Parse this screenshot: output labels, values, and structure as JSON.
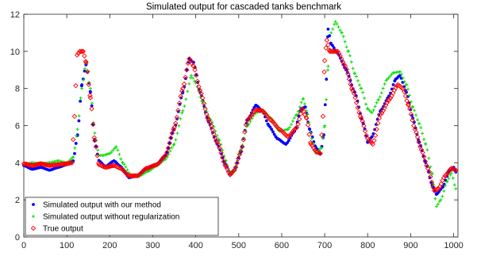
{
  "chart_data": {
    "type": "scatter",
    "title": "Simulated output for cascaded tanks benchmark",
    "xlabel": "",
    "ylabel": "",
    "xlim": [
      0,
      1010
    ],
    "ylim": [
      0,
      12
    ],
    "xticks": [
      0,
      100,
      200,
      300,
      400,
      500,
      600,
      700,
      800,
      900,
      1000
    ],
    "yticks": [
      0,
      2,
      4,
      6,
      8,
      10,
      12
    ],
    "grid": false,
    "legend_position": "bottom-left",
    "series": [
      {
        "name": "Simulated output with our method",
        "color": "#0000ff",
        "marker": "dot",
        "points": [
          [
            0,
            3.85
          ],
          [
            20,
            3.65
          ],
          [
            40,
            3.75
          ],
          [
            60,
            3.6
          ],
          [
            80,
            3.75
          ],
          [
            100,
            3.9
          ],
          [
            115,
            4.1
          ],
          [
            125,
            5.5
          ],
          [
            135,
            8.2
          ],
          [
            145,
            9.3
          ],
          [
            155,
            7.8
          ],
          [
            165,
            5.2
          ],
          [
            175,
            4.1
          ],
          [
            190,
            3.8
          ],
          [
            210,
            4.1
          ],
          [
            225,
            3.8
          ],
          [
            245,
            3.2
          ],
          [
            265,
            3.3
          ],
          [
            285,
            3.65
          ],
          [
            310,
            3.9
          ],
          [
            330,
            4.4
          ],
          [
            350,
            5.8
          ],
          [
            370,
            7.8
          ],
          [
            385,
            9.6
          ],
          [
            395,
            9.4
          ],
          [
            410,
            7.8
          ],
          [
            430,
            6.2
          ],
          [
            450,
            5.0
          ],
          [
            470,
            3.9
          ],
          [
            480,
            3.4
          ],
          [
            490,
            3.6
          ],
          [
            505,
            4.6
          ],
          [
            520,
            6.3
          ],
          [
            540,
            7.1
          ],
          [
            555,
            6.8
          ],
          [
            570,
            6.0
          ],
          [
            590,
            5.3
          ],
          [
            610,
            5.0
          ],
          [
            630,
            5.7
          ],
          [
            645,
            6.9
          ],
          [
            655,
            7.0
          ],
          [
            665,
            5.8
          ],
          [
            680,
            4.8
          ],
          [
            690,
            4.5
          ],
          [
            698,
            5.5
          ],
          [
            704,
            8.5
          ],
          [
            708,
            11.2
          ],
          [
            715,
            10.4
          ],
          [
            730,
            9.9
          ],
          [
            750,
            9.0
          ],
          [
            770,
            7.8
          ],
          [
            790,
            6.1
          ],
          [
            800,
            5.1
          ],
          [
            810,
            5.4
          ],
          [
            830,
            6.8
          ],
          [
            850,
            7.6
          ],
          [
            865,
            8.5
          ],
          [
            875,
            8.7
          ],
          [
            890,
            7.8
          ],
          [
            905,
            6.4
          ],
          [
            920,
            5.1
          ],
          [
            935,
            4.0
          ],
          [
            950,
            2.8
          ],
          [
            960,
            2.3
          ],
          [
            975,
            2.7
          ],
          [
            990,
            3.55
          ],
          [
            1000,
            3.75
          ],
          [
            1005,
            3.5
          ]
        ]
      },
      {
        "name": "Simulated output without regularization",
        "color": "#00dd00",
        "marker": "plus",
        "points": [
          [
            0,
            3.9
          ],
          [
            20,
            4.0
          ],
          [
            40,
            3.95
          ],
          [
            60,
            4.0
          ],
          [
            80,
            4.1
          ],
          [
            100,
            4.0
          ],
          [
            115,
            4.3
          ],
          [
            125,
            5.8
          ],
          [
            135,
            8.0
          ],
          [
            145,
            9.4
          ],
          [
            155,
            8.0
          ],
          [
            165,
            5.6
          ],
          [
            175,
            4.4
          ],
          [
            185,
            4.4
          ],
          [
            200,
            4.5
          ],
          [
            215,
            4.85
          ],
          [
            230,
            4.0
          ],
          [
            250,
            3.3
          ],
          [
            270,
            3.3
          ],
          [
            290,
            3.55
          ],
          [
            310,
            3.85
          ],
          [
            330,
            4.2
          ],
          [
            350,
            5.0
          ],
          [
            370,
            6.8
          ],
          [
            390,
            8.7
          ],
          [
            400,
            8.3
          ],
          [
            415,
            7.3
          ],
          [
            435,
            6.3
          ],
          [
            455,
            5.2
          ],
          [
            470,
            4.1
          ],
          [
            480,
            3.4
          ],
          [
            490,
            3.6
          ],
          [
            505,
            4.7
          ],
          [
            520,
            6.0
          ],
          [
            540,
            6.7
          ],
          [
            555,
            6.8
          ],
          [
            575,
            6.4
          ],
          [
            595,
            5.7
          ],
          [
            615,
            5.8
          ],
          [
            635,
            6.6
          ],
          [
            650,
            7.45
          ],
          [
            660,
            6.6
          ],
          [
            670,
            5.3
          ],
          [
            680,
            4.5
          ],
          [
            692,
            4.8
          ],
          [
            700,
            6.0
          ],
          [
            708,
            9.2
          ],
          [
            715,
            11.0
          ],
          [
            725,
            11.6
          ],
          [
            740,
            11.0
          ],
          [
            755,
            10.0
          ],
          [
            770,
            8.8
          ],
          [
            785,
            8.0
          ],
          [
            800,
            6.9
          ],
          [
            810,
            6.7
          ],
          [
            825,
            7.4
          ],
          [
            845,
            8.5
          ],
          [
            860,
            8.85
          ],
          [
            875,
            8.9
          ],
          [
            890,
            8.2
          ],
          [
            905,
            7.0
          ],
          [
            920,
            6.1
          ],
          [
            935,
            5.0
          ],
          [
            950,
            3.4
          ],
          [
            960,
            1.65
          ],
          [
            970,
            2.0
          ],
          [
            985,
            3.0
          ],
          [
            995,
            3.45
          ],
          [
            1005,
            2.6
          ]
        ]
      },
      {
        "name": "True output",
        "color": "#ff0000",
        "marker": "diamond",
        "points": [
          [
            0,
            3.95
          ],
          [
            20,
            3.85
          ],
          [
            40,
            3.95
          ],
          [
            60,
            3.85
          ],
          [
            80,
            3.9
          ],
          [
            100,
            3.95
          ],
          [
            112,
            4.0
          ],
          [
            118,
            6.5
          ],
          [
            124,
            9.8
          ],
          [
            130,
            10.0
          ],
          [
            138,
            10.0
          ],
          [
            145,
            9.4
          ],
          [
            155,
            7.5
          ],
          [
            165,
            5.2
          ],
          [
            175,
            3.9
          ],
          [
            190,
            3.75
          ],
          [
            210,
            3.85
          ],
          [
            225,
            3.7
          ],
          [
            245,
            3.3
          ],
          [
            265,
            3.3
          ],
          [
            285,
            3.7
          ],
          [
            310,
            3.9
          ],
          [
            330,
            4.4
          ],
          [
            350,
            5.9
          ],
          [
            370,
            8.0
          ],
          [
            385,
            9.6
          ],
          [
            395,
            9.2
          ],
          [
            410,
            7.9
          ],
          [
            430,
            6.3
          ],
          [
            450,
            5.1
          ],
          [
            470,
            3.8
          ],
          [
            480,
            3.35
          ],
          [
            490,
            3.6
          ],
          [
            505,
            4.6
          ],
          [
            520,
            6.3
          ],
          [
            540,
            6.85
          ],
          [
            555,
            6.8
          ],
          [
            575,
            6.3
          ],
          [
            595,
            5.8
          ],
          [
            615,
            5.4
          ],
          [
            635,
            5.9
          ],
          [
            648,
            6.9
          ],
          [
            658,
            6.4
          ],
          [
            668,
            5.0
          ],
          [
            680,
            4.6
          ],
          [
            690,
            4.5
          ],
          [
            696,
            6.5
          ],
          [
            700,
            9.5
          ],
          [
            705,
            10.6
          ],
          [
            712,
            10.0
          ],
          [
            730,
            10.0
          ],
          [
            748,
            9.2
          ],
          [
            765,
            7.9
          ],
          [
            785,
            6.4
          ],
          [
            800,
            5.3
          ],
          [
            812,
            5.0
          ],
          [
            830,
            6.6
          ],
          [
            850,
            7.4
          ],
          [
            870,
            8.2
          ],
          [
            882,
            8.0
          ],
          [
            895,
            7.1
          ],
          [
            910,
            5.8
          ],
          [
            925,
            4.7
          ],
          [
            940,
            3.7
          ],
          [
            955,
            2.5
          ],
          [
            965,
            2.6
          ],
          [
            980,
            3.3
          ],
          [
            995,
            3.7
          ],
          [
            1005,
            3.6
          ]
        ]
      }
    ]
  }
}
